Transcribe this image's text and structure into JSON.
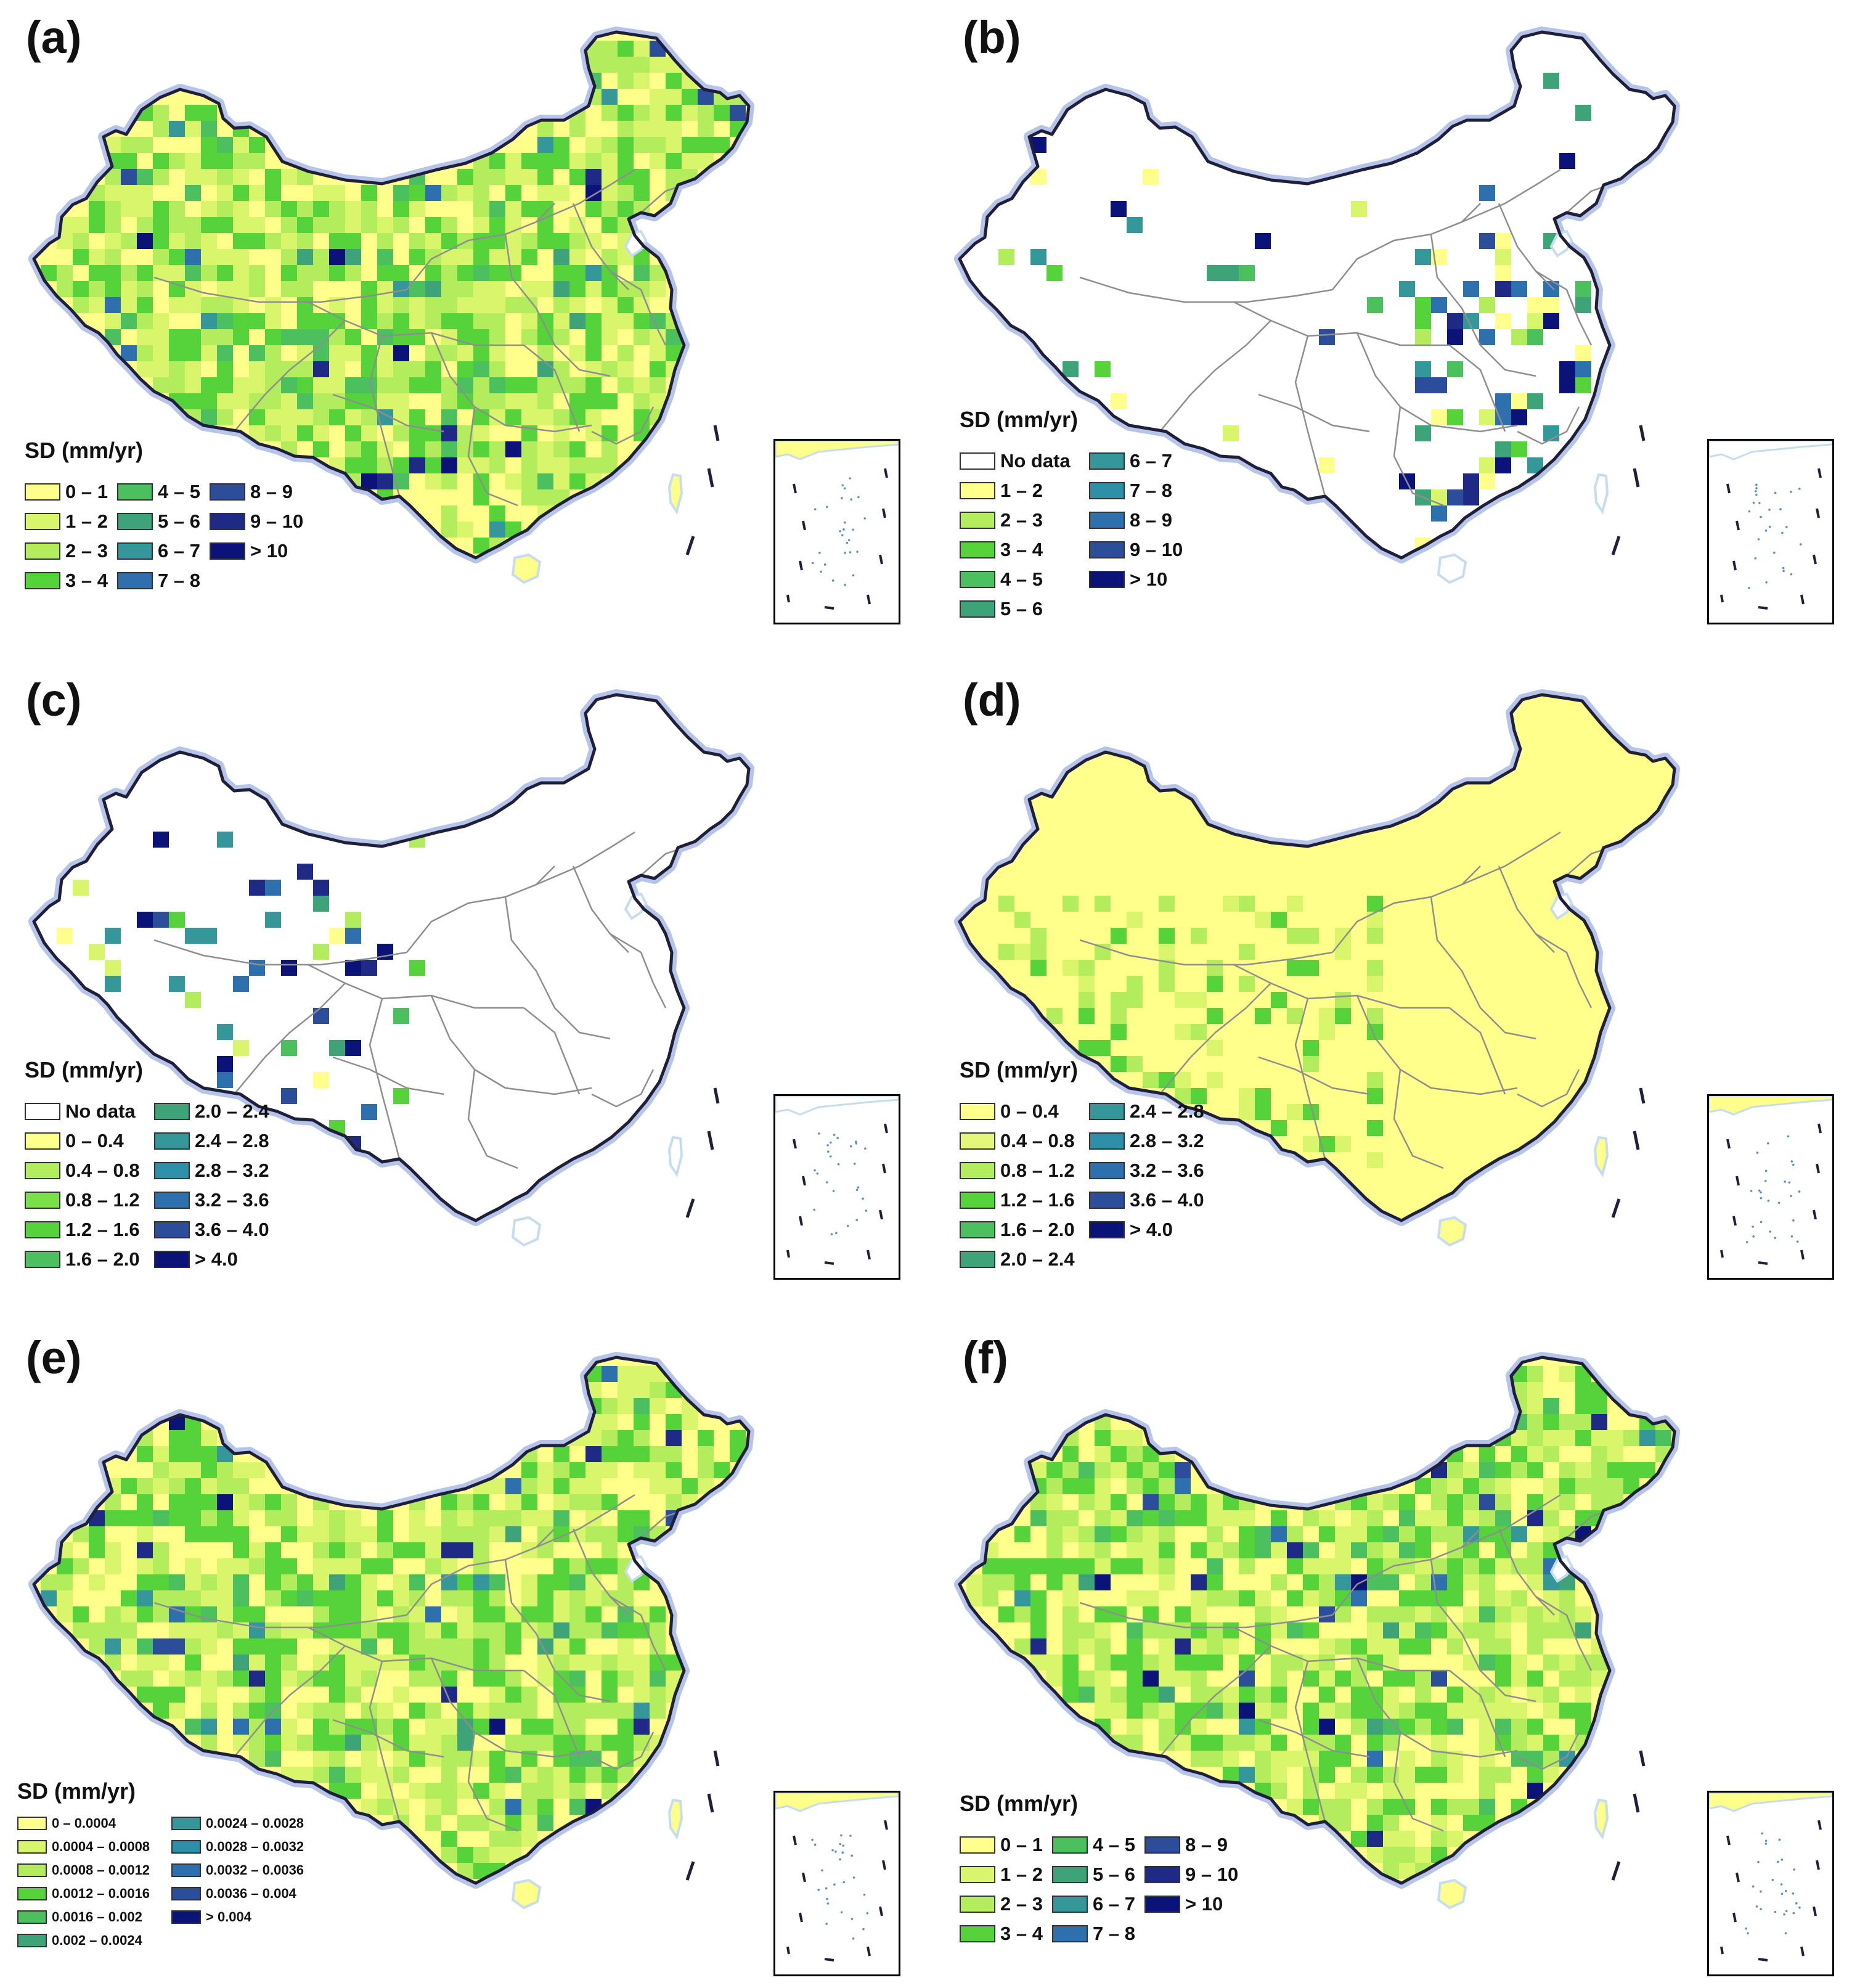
{
  "colors": {
    "nodata": "#ffffff",
    "land_base": "#f7f7f7",
    "boundary": "#1f1f3a",
    "halo": "#b7c4ea",
    "province": "#8e8e8e",
    "water": "#c7dcee",
    "ramp": [
      "#ffff8c",
      "#d8f56c",
      "#b3ec5c",
      "#56d33b",
      "#4cc05f",
      "#3fa37a",
      "#35979a",
      "#2e6fad",
      "#2c4d99",
      "#1e2a86",
      "#0b1378"
    ]
  },
  "icons": {
    "inset": "south-china-sea-inset-icon",
    "island": "hainan-island-icon",
    "taiwan": "taiwan-island-icon"
  },
  "panels": [
    {
      "label": "(a)",
      "legend_title": "SD (mm/yr)",
      "palette": "full",
      "background": "mixed",
      "entries": [
        {
          "label": "0 – 1",
          "color": "#ffff8c"
        },
        {
          "label": "1 – 2",
          "color": "#d8f56c"
        },
        {
          "label": "2 – 3",
          "color": "#b3ec5c"
        },
        {
          "label": "3 – 4",
          "color": "#56d33b"
        },
        {
          "label": "4 – 5",
          "color": "#4cc05f"
        },
        {
          "label": "5 – 6",
          "color": "#3fa37a"
        },
        {
          "label": "6 – 7",
          "color": "#35979a"
        },
        {
          "label": "7 – 8",
          "color": "#2e6fad"
        },
        {
          "label": "8 – 9",
          "color": "#2c4d99"
        },
        {
          "label": "9 – 10",
          "color": "#1e2a86"
        },
        {
          "label": "> 10",
          "color": "#0b1378"
        }
      ]
    },
    {
      "label": "(b)",
      "legend_title": "SD (mm/yr)",
      "palette": "sparse",
      "background": "nodata",
      "entries": [
        {
          "label": "No data",
          "color": "#ffffff"
        },
        {
          "label": "1 – 2",
          "color": "#ffff8c"
        },
        {
          "label": "2 – 3",
          "color": "#b3ec5c"
        },
        {
          "label": "3 – 4",
          "color": "#56d33b"
        },
        {
          "label": "4 – 5",
          "color": "#4cc05f"
        },
        {
          "label": "5 – 6",
          "color": "#3fa37a"
        },
        {
          "label": "6 – 7",
          "color": "#35979a"
        },
        {
          "label": "7 – 8",
          "color": "#2e8fa8"
        },
        {
          "label": "8 – 9",
          "color": "#2e6fad"
        },
        {
          "label": "9 – 10",
          "color": "#2c4d99"
        },
        {
          "label": "> 10",
          "color": "#0b1378"
        }
      ]
    },
    {
      "label": "(c)",
      "legend_title": "SD (mm/yr)",
      "palette": "west",
      "background": "nodata",
      "entries": [
        {
          "label": "No data",
          "color": "#ffffff"
        },
        {
          "label": "0 – 0.4",
          "color": "#ffff8c"
        },
        {
          "label": "0.4 – 0.8",
          "color": "#b3ec5c"
        },
        {
          "label": "0.8 – 1.2",
          "color": "#7adf48"
        },
        {
          "label": "1.2 – 1.6",
          "color": "#56d33b"
        },
        {
          "label": "1.6 – 2.0",
          "color": "#4cc05f"
        },
        {
          "label": "2.0 – 2.4",
          "color": "#3fa37a"
        },
        {
          "label": "2.4 – 2.8",
          "color": "#35979a"
        },
        {
          "label": "2.8 – 3.2",
          "color": "#2e8fa8"
        },
        {
          "label": "3.2 – 3.6",
          "color": "#2e6fad"
        },
        {
          "label": "3.6 – 4.0",
          "color": "#2c4d99"
        },
        {
          "label": "> 4.0",
          "color": "#0b1378"
        }
      ]
    },
    {
      "label": "(d)",
      "legend_title": "SD (mm/yr)",
      "palette": "yellow",
      "background": "yellow",
      "entries": [
        {
          "label": "0 – 0.4",
          "color": "#ffff8c"
        },
        {
          "label": "0.4 – 0.8",
          "color": "#e4f77a"
        },
        {
          "label": "0.8 – 1.2",
          "color": "#b3ec5c"
        },
        {
          "label": "1.2 – 1.6",
          "color": "#56d33b"
        },
        {
          "label": "1.6 – 2.0",
          "color": "#4cc05f"
        },
        {
          "label": "2.0 – 2.4",
          "color": "#3fa37a"
        },
        {
          "label": "2.4 – 2.8",
          "color": "#35979a"
        },
        {
          "label": "2.8 – 3.2",
          "color": "#2e8fa8"
        },
        {
          "label": "3.2 – 3.6",
          "color": "#2e6fad"
        },
        {
          "label": "3.6 – 4.0",
          "color": "#2c4d99"
        },
        {
          "label": "> 4.0",
          "color": "#0b1378"
        }
      ]
    },
    {
      "label": "(e)",
      "legend_title": "SD (mm/yr)",
      "palette": "full",
      "background": "mixed",
      "entries": [
        {
          "label": "0 – 0.0004",
          "color": "#ffff8c"
        },
        {
          "label": "0.0004 – 0.0008",
          "color": "#d8f56c"
        },
        {
          "label": "0.0008 – 0.0012",
          "color": "#b3ec5c"
        },
        {
          "label": "0.0012 – 0.0016",
          "color": "#56d33b"
        },
        {
          "label": "0.0016 – 0.002",
          "color": "#4cc05f"
        },
        {
          "label": "0.002 – 0.0024",
          "color": "#3fa37a"
        },
        {
          "label": "0.0024 – 0.0028",
          "color": "#35979a"
        },
        {
          "label": "0.0028 – 0.0032",
          "color": "#2e8fa8"
        },
        {
          "label": "0.0032 – 0.0036",
          "color": "#2e6fad"
        },
        {
          "label": "0.0036 – 0.004",
          "color": "#2c4d99"
        },
        {
          "label": "> 0.004",
          "color": "#0b1378"
        }
      ]
    },
    {
      "label": "(f)",
      "legend_title": "SD (mm/yr)",
      "palette": "full",
      "background": "mixed",
      "entries": [
        {
          "label": "0 – 1",
          "color": "#ffff8c"
        },
        {
          "label": "1 – 2",
          "color": "#d8f56c"
        },
        {
          "label": "2 – 3",
          "color": "#b3ec5c"
        },
        {
          "label": "3 – 4",
          "color": "#56d33b"
        },
        {
          "label": "4 – 5",
          "color": "#4cc05f"
        },
        {
          "label": "5 – 6",
          "color": "#3fa37a"
        },
        {
          "label": "6 – 7",
          "color": "#35979a"
        },
        {
          "label": "7 – 8",
          "color": "#2e6fad"
        },
        {
          "label": "8 – 9",
          "color": "#2c4d99"
        },
        {
          "label": "9 – 10",
          "color": "#1e2a86"
        },
        {
          "label": "> 10",
          "color": "#0b1378"
        }
      ]
    }
  ]
}
